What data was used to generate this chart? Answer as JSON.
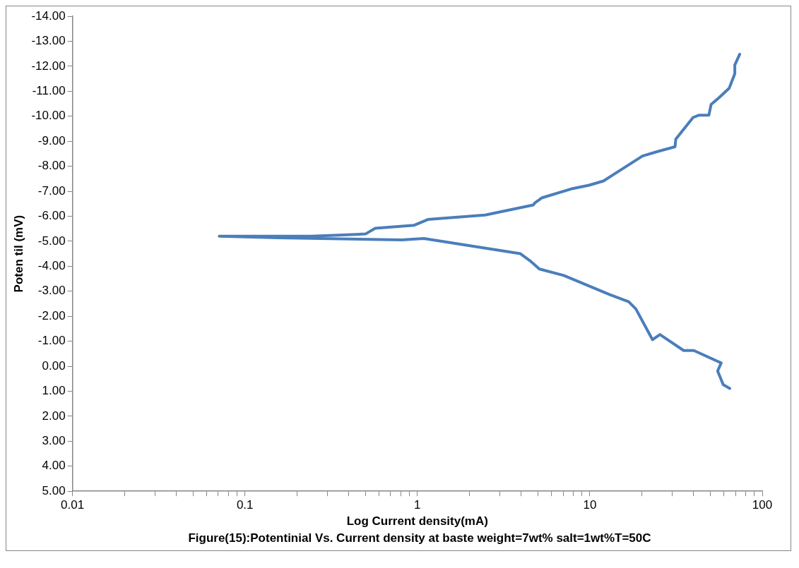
{
  "chart_data": {
    "type": "line",
    "title": "Figure(15):Potentinial Vs. Current density at baste weight=7wt% salt=1wt%T=50C",
    "xlabel": "Log Current density(mA)",
    "ylabel": "Poten til (mV)",
    "log": "x",
    "grid": false,
    "legend": false,
    "marker": "none",
    "line_style": "solid",
    "xlim": [
      0.01,
      100
    ],
    "xticks": [
      0.01,
      {
        "value": 0.02,
        "label": null
      },
      {
        "value": 0.03,
        "label": null
      },
      {
        "value": 0.04,
        "label": null
      },
      {
        "value": 0.05,
        "label": null
      },
      {
        "value": 0.06,
        "label": null
      },
      {
        "value": 0.07,
        "label": null
      },
      {
        "value": 0.08,
        "label": null
      },
      {
        "value": 0.09,
        "label": null
      },
      0.1,
      {
        "value": 0.2,
        "label": null
      },
      {
        "value": 0.3,
        "label": null
      },
      {
        "value": 0.4,
        "label": null
      },
      {
        "value": 0.5,
        "label": null
      },
      {
        "value": 0.6,
        "label": null
      },
      {
        "value": 0.7,
        "label": null
      },
      {
        "value": 0.8,
        "label": null
      },
      {
        "value": 0.9,
        "label": null
      },
      1,
      {
        "value": 2,
        "label": null
      },
      {
        "value": 3,
        "label": null
      },
      {
        "value": 4,
        "label": null
      },
      {
        "value": 5,
        "label": null
      },
      {
        "value": 6,
        "label": null
      },
      {
        "value": 7,
        "label": null
      },
      {
        "value": 8,
        "label": null
      },
      {
        "value": 9,
        "label": null
      },
      10,
      {
        "value": 20,
        "label": null
      },
      {
        "value": 30,
        "label": null
      },
      {
        "value": 40,
        "label": null
      },
      {
        "value": 50,
        "label": null
      },
      {
        "value": 60,
        "label": null
      },
      {
        "value": 70,
        "label": null
      },
      {
        "value": 80,
        "label": null
      },
      {
        "value": 90,
        "label": null
      },
      100
    ],
    "ylim": [
      5,
      -14
    ],
    "yticks": [
      {
        "value": -14,
        "label": "-14.00"
      },
      {
        "value": -13,
        "label": "-13.00"
      },
      {
        "value": -12,
        "label": "-12.00"
      },
      {
        "value": -11,
        "label": "-11.00"
      },
      {
        "value": -10,
        "label": "-10.00"
      },
      {
        "value": -9,
        "label": "-9.00"
      },
      {
        "value": -8,
        "label": "-8.00"
      },
      {
        "value": -7,
        "label": "-7.00"
      },
      {
        "value": -6,
        "label": "-6.00"
      },
      {
        "value": -5,
        "label": "-5.00"
      },
      {
        "value": -4,
        "label": "-4.00"
      },
      {
        "value": -3,
        "label": "-3.00"
      },
      {
        "value": -2,
        "label": "-2.00"
      },
      {
        "value": -1,
        "label": "-1.00"
      },
      {
        "value": 0,
        "label": "0.00"
      },
      {
        "value": 1,
        "label": "1.00"
      },
      {
        "value": 2,
        "label": "2.00"
      },
      {
        "value": 3,
        "label": "3.00"
      },
      {
        "value": 4,
        "label": "4.00"
      },
      {
        "value": 5,
        "label": "5.00"
      }
    ],
    "series": [
      {
        "color": "#4a7ebb",
        "x": [
          74,
          69.3,
          69.3,
          64.3,
          56.1,
          50.5,
          49,
          42.8,
          39.7,
          31.5,
          31.2,
          24.5,
          20.2,
          15.1,
          12,
          9.9,
          7.78,
          5.29,
          4.81,
          4.7,
          2.47,
          1.15,
          0.96,
          0.57,
          0.5,
          0.243,
          0.098,
          0.071,
          0.157,
          0.81,
          1.09,
          3.96,
          4.5,
          5.1,
          7.06,
          13,
          16.8,
          18.5,
          23.1,
          25.5,
          35,
          40.1,
          57.8,
          55.1,
          59.4,
          64.8
        ],
        "values": [
          -12.48,
          -12.05,
          -11.7,
          -11.12,
          -10.74,
          -10.47,
          -10.04,
          -10.04,
          -9.95,
          -9.08,
          -8.78,
          -8.58,
          -8.41,
          -7.85,
          -7.41,
          -7.24,
          -7.09,
          -6.74,
          -6.54,
          -6.45,
          -6.05,
          -5.87,
          -5.64,
          -5.52,
          -5.29,
          -5.2,
          -5.2,
          -5.2,
          -5.14,
          -5.05,
          -5.11,
          -4.5,
          -4.22,
          -3.89,
          -3.63,
          -2.87,
          -2.58,
          -2.29,
          -1.06,
          -1.27,
          -0.63,
          -0.63,
          -0.13,
          0.19,
          0.74,
          0.89
        ]
      }
    ]
  }
}
